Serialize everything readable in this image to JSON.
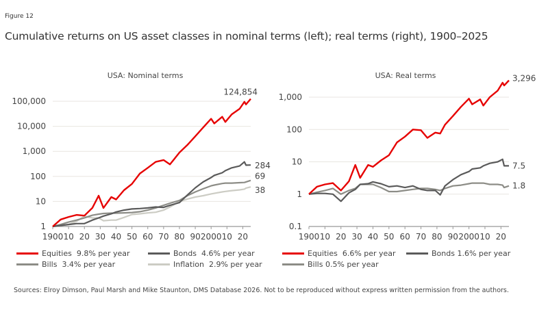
{
  "figure_label": "Figure 12",
  "title": "Cumulative returns on US asset classes in nominal terms (left); real terms (right), 1900–2025",
  "sources": "Sources: Elroy Dimson, Paul Marsh and Mike Staunton, DMS Database 2026. Not to be reproduced without express written permission from the authors.",
  "colors": {
    "equities": "#e60000",
    "bonds": "#5a5a5a",
    "bills": "#8c8c86",
    "inflation": "#ccccc4",
    "grid": "#e8e6e0",
    "axis": "#999999",
    "text": "#444444"
  },
  "chart_data": [
    {
      "type": "line",
      "title": "USA: Nominal terms",
      "xlabel": "",
      "ylabel": "",
      "yscale": "log",
      "ylim": [
        1,
        150000
      ],
      "xlim": [
        1900,
        2025
      ],
      "grid": true,
      "legend": "bottom",
      "y_ticks": [
        1,
        10,
        100,
        1000,
        10000,
        100000
      ],
      "y_tick_labels": [
        "1",
        "10",
        "100",
        "1,000",
        "10,000",
        "100,000"
      ],
      "x_ticks": [
        1900,
        1910,
        1920,
        1930,
        1940,
        1950,
        1960,
        1970,
        1980,
        1990,
        2000,
        2010,
        2020
      ],
      "x_tick_labels": [
        "1900",
        "10",
        "20",
        "30",
        "40",
        "50",
        "60",
        "70",
        "80",
        "90",
        "2000",
        "10",
        "20"
      ],
      "x": [
        1900,
        1905,
        1910,
        1915,
        1920,
        1925,
        1929,
        1932,
        1937,
        1940,
        1945,
        1950,
        1955,
        1960,
        1965,
        1970,
        1974,
        1980,
        1985,
        1990,
        1995,
        2000,
        2002,
        2007,
        2009,
        2013,
        2018,
        2021,
        2022,
        2025
      ],
      "series": [
        {
          "name": "Equities",
          "legend": "Equities  9.8% per year",
          "end_label": "124,854",
          "values": [
            1,
            1.9,
            2.4,
            2.9,
            2.7,
            5.5,
            17,
            5.5,
            15,
            12,
            28,
            50,
            130,
            220,
            380,
            450,
            300,
            900,
            1800,
            4000,
            9000,
            20000,
            13000,
            24000,
            15000,
            30000,
            50000,
            95000,
            75000,
            124854
          ]
        },
        {
          "name": "Bonds",
          "legend": "Bonds  4.6% per year",
          "end_label": "284",
          "values": [
            1,
            1.1,
            1.2,
            1.3,
            1.3,
            1.8,
            2.2,
            2.6,
            3.2,
            3.8,
            4.5,
            5,
            5.2,
            5.5,
            6,
            5.8,
            7,
            9,
            18,
            35,
            60,
            90,
            110,
            140,
            170,
            220,
            260,
            380,
            280,
            284
          ]
        },
        {
          "name": "Bills",
          "legend": "Bills  3.4% per year",
          "end_label": "69",
          "values": [
            1,
            1.2,
            1.5,
            1.8,
            2.2,
            2.8,
            3.1,
            3.3,
            3.4,
            3.4,
            3.5,
            3.6,
            3.9,
            4.5,
            5.5,
            7,
            8.5,
            11,
            17,
            24,
            32,
            42,
            45,
            52,
            54,
            54,
            56,
            57,
            60,
            69
          ]
        },
        {
          "name": "Inflation",
          "legend": "Inflation  2.9% per year",
          "end_label": "38",
          "values": [
            1,
            1.1,
            1.2,
            1.6,
            2.6,
            2.2,
            2.2,
            1.7,
            1.8,
            1.8,
            2.3,
            3,
            3.2,
            3.5,
            3.7,
            4.5,
            6,
            10,
            12.5,
            15,
            17,
            20,
            21,
            24,
            25,
            27,
            29,
            31,
            34,
            38
          ]
        }
      ]
    },
    {
      "type": "line",
      "title": "USA: Real terms",
      "xlabel": "",
      "ylabel": "",
      "yscale": "log",
      "ylim": [
        0.1,
        4000
      ],
      "xlim": [
        1900,
        2025
      ],
      "grid": true,
      "legend": "bottom",
      "y_ticks": [
        0.1,
        1,
        10,
        100,
        1000
      ],
      "y_tick_labels": [
        "0.1",
        "1",
        "10",
        "100",
        "1,000"
      ],
      "x_ticks": [
        1900,
        1910,
        1920,
        1930,
        1940,
        1950,
        1960,
        1970,
        1980,
        1990,
        2000,
        2010,
        2020
      ],
      "x_tick_labels": [
        "1900",
        "10",
        "20",
        "30",
        "40",
        "50",
        "60",
        "70",
        "80",
        "90",
        "2000",
        "10",
        "20"
      ],
      "x": [
        1900,
        1905,
        1910,
        1915,
        1920,
        1925,
        1929,
        1932,
        1937,
        1940,
        1945,
        1950,
        1955,
        1960,
        1965,
        1970,
        1974,
        1979,
        1982,
        1985,
        1990,
        1995,
        2000,
        2002,
        2007,
        2009,
        2013,
        2018,
        2021,
        2022,
        2025
      ],
      "series": [
        {
          "name": "Equities",
          "legend": "Equities  6.6% per year",
          "end_label": "3,296",
          "values": [
            1,
            1.7,
            2,
            2.2,
            1.3,
            2.5,
            8,
            3.2,
            8,
            7,
            11,
            16,
            40,
            60,
            100,
            95,
            55,
            80,
            75,
            140,
            260,
            500,
            900,
            600,
            850,
            550,
            1000,
            1600,
            2800,
            2300,
            3296
          ]
        },
        {
          "name": "Bonds",
          "legend": "Bonds 1.6% per year",
          "end_label": "7.5",
          "values": [
            1,
            1.05,
            1.05,
            1.0,
            0.6,
            1.1,
            1.4,
            2.0,
            2.1,
            2.4,
            2.1,
            1.7,
            1.8,
            1.6,
            1.8,
            1.4,
            1.3,
            1.3,
            0.95,
            1.8,
            2.8,
            4,
            5,
            6,
            6.5,
            7.5,
            9,
            10,
            12,
            7.5,
            7.5
          ]
        },
        {
          "name": "Bills",
          "legend": "Bills 0.5% per year",
          "end_label": "1.8",
          "values": [
            1,
            1.15,
            1.3,
            1.5,
            1.0,
            1.3,
            1.5,
            2.0,
            2.0,
            2.0,
            1.6,
            1.2,
            1.2,
            1.3,
            1.4,
            1.5,
            1.5,
            1.4,
            1.3,
            1.5,
            1.8,
            1.9,
            2.1,
            2.2,
            2.2,
            2.2,
            2.0,
            2.0,
            1.9,
            1.6,
            1.8
          ]
        }
      ]
    }
  ]
}
